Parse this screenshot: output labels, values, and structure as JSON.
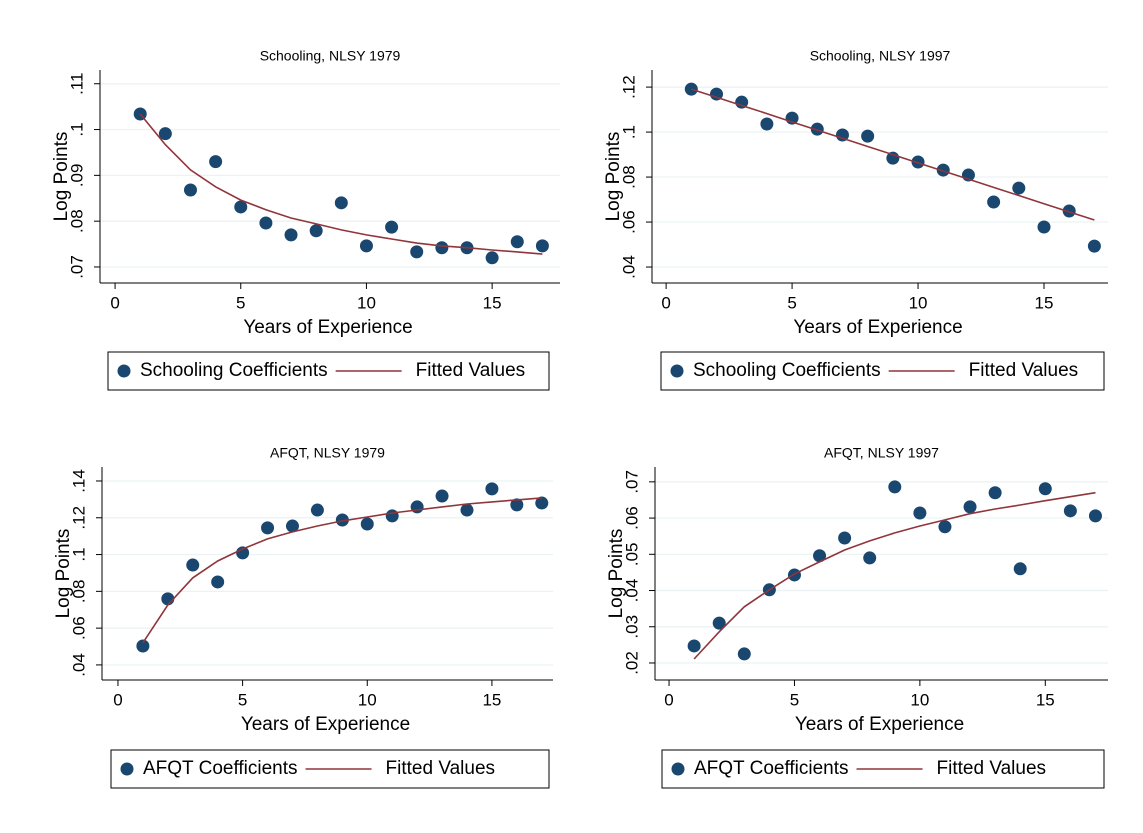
{
  "chart_data": [
    {
      "type": "scatter",
      "title": "Schooling, NLSY 1979",
      "xlabel": "Years of Experience",
      "ylabel": "Log Points",
      "x": [
        1,
        2,
        3,
        4,
        5,
        6,
        7,
        8,
        9,
        10,
        11,
        12,
        13,
        14,
        15,
        16,
        17
      ],
      "series": [
        {
          "name": "Schooling Coefficients",
          "type": "scatter",
          "color": "#1a476f",
          "values": [
            0.1034,
            0.0991,
            0.0868,
            0.093,
            0.0831,
            0.0796,
            0.077,
            0.0779,
            0.084,
            0.0746,
            0.0787,
            0.0733,
            0.0742,
            0.0742,
            0.072,
            0.0755,
            0.0746
          ]
        },
        {
          "name": "Fitted Values",
          "type": "line",
          "color": "#90353b",
          "values": [
            0.1034,
            0.0967,
            0.0912,
            0.0875,
            0.0846,
            0.0825,
            0.0807,
            0.0794,
            0.0781,
            0.077,
            0.0761,
            0.0752,
            0.0746,
            0.0742,
            0.0737,
            0.0733,
            0.0728
          ]
        }
      ],
      "xlim": [
        -0.6,
        17.7
      ],
      "ylim": [
        0.0665,
        0.113
      ],
      "xticks": [
        0,
        5,
        10,
        15
      ],
      "yticks": [
        {
          "value": 0.07,
          "label": ".07"
        },
        {
          "value": 0.08,
          "label": ".08"
        },
        {
          "value": 0.09,
          "label": ".09"
        },
        {
          "value": 0.1,
          "label": ".1"
        },
        {
          "value": 0.11,
          "label": ".11"
        }
      ],
      "grid": true
    },
    {
      "type": "scatter",
      "title": "Schooling, NLSY 1997",
      "xlabel": "Years of Experience",
      "ylabel": "Log Points",
      "x": [
        1,
        2,
        3,
        4,
        5,
        6,
        7,
        8,
        9,
        10,
        11,
        12,
        13,
        14,
        15,
        16,
        17
      ],
      "series": [
        {
          "name": "Schooling Coefficients",
          "type": "scatter",
          "color": "#1a476f",
          "values": [
            0.1191,
            0.1169,
            0.1133,
            0.1036,
            0.1062,
            0.1013,
            0.0987,
            0.0982,
            0.0884,
            0.0867,
            0.0831,
            0.0809,
            0.0689,
            0.0751,
            0.0578,
            0.0649,
            0.0493
          ]
        },
        {
          "name": "Fitted Values",
          "type": "line",
          "color": "#90353b",
          "values": [
            0.1191,
            0.1155,
            0.1118,
            0.1082,
            0.1045,
            0.1009,
            0.0973,
            0.0936,
            0.09,
            0.0863,
            0.0827,
            0.0791,
            0.0754,
            0.0718,
            0.0681,
            0.0645,
            0.0609
          ]
        }
      ],
      "xlim": [
        -0.56,
        17.54
      ],
      "ylim": [
        0.0329,
        0.1276
      ],
      "xticks": [
        0,
        5,
        10,
        15
      ],
      "yticks": [
        {
          "value": 0.04,
          "label": ".04"
        },
        {
          "value": 0.06,
          "label": ".06"
        },
        {
          "value": 0.08,
          "label": ".08"
        },
        {
          "value": 0.1,
          "label": ".1"
        },
        {
          "value": 0.12,
          "label": ".12"
        }
      ],
      "grid": true
    },
    {
      "type": "scatter",
      "title": "AFQT, NLSY 1979",
      "xlabel": "Years of Experience",
      "ylabel": "Log Points",
      "x": [
        1,
        2,
        3,
        4,
        5,
        6,
        7,
        8,
        9,
        10,
        11,
        12,
        13,
        14,
        15,
        16,
        17
      ],
      "series": [
        {
          "name": "AFQT Coefficients",
          "type": "scatter",
          "color": "#1a476f",
          "values": [
            0.0503,
            0.0759,
            0.0943,
            0.0851,
            0.1009,
            0.1145,
            0.1155,
            0.1242,
            0.1188,
            0.1166,
            0.121,
            0.1259,
            0.1318,
            0.1242,
            0.1357,
            0.127,
            0.128
          ]
        },
        {
          "name": "Fitted Values",
          "type": "line",
          "color": "#90353b",
          "values": [
            0.052,
            0.0726,
            0.0873,
            0.0965,
            0.103,
            0.1085,
            0.1123,
            0.1155,
            0.1183,
            0.1204,
            0.1226,
            0.1242,
            0.1259,
            0.1275,
            0.1286,
            0.1297,
            0.1308
          ]
        }
      ],
      "xlim": [
        -0.64,
        17.45
      ],
      "ylim": [
        0.0318,
        0.1476
      ],
      "xticks": [
        0,
        5,
        10,
        15
      ],
      "yticks": [
        {
          "value": 0.04,
          "label": ".04"
        },
        {
          "value": 0.06,
          "label": ".06"
        },
        {
          "value": 0.08,
          "label": ".08"
        },
        {
          "value": 0.1,
          "label": ".1"
        },
        {
          "value": 0.12,
          "label": ".12"
        },
        {
          "value": 0.14,
          "label": ".14"
        }
      ],
      "grid": true
    },
    {
      "type": "scatter",
      "title": "AFQT, NLSY 1997",
      "xlabel": "Years of Experience",
      "ylabel": "Log Points",
      "x": [
        1,
        2,
        3,
        4,
        5,
        6,
        7,
        8,
        9,
        10,
        11,
        12,
        13,
        14,
        15,
        16,
        17
      ],
      "series": [
        {
          "name": "AFQT Coefficients",
          "type": "scatter",
          "color": "#1a476f",
          "values": [
            0.0247,
            0.031,
            0.0225,
            0.0402,
            0.0443,
            0.0496,
            0.0545,
            0.049,
            0.0686,
            0.0614,
            0.0576,
            0.0631,
            0.067,
            0.046,
            0.0681,
            0.062,
            0.0606
          ]
        },
        {
          "name": "Fitted Values",
          "type": "line",
          "color": "#90353b",
          "values": [
            0.0211,
            0.0286,
            0.0355,
            0.0402,
            0.0446,
            0.0479,
            0.0512,
            0.0537,
            0.0559,
            0.0578,
            0.0595,
            0.0612,
            0.0625,
            0.0636,
            0.0648,
            0.0659,
            0.067
          ]
        }
      ],
      "xlim": [
        -0.56,
        17.5
      ],
      "ylim": [
        0.0153,
        0.0741
      ],
      "xticks": [
        0,
        5,
        10,
        15
      ],
      "yticks": [
        {
          "value": 0.02,
          "label": ".02"
        },
        {
          "value": 0.03,
          "label": ".03"
        },
        {
          "value": 0.04,
          "label": ".04"
        },
        {
          "value": 0.05,
          "label": ".05"
        },
        {
          "value": 0.06,
          "label": ".06"
        },
        {
          "value": 0.07,
          "label": ".07"
        }
      ],
      "grid": true
    }
  ]
}
